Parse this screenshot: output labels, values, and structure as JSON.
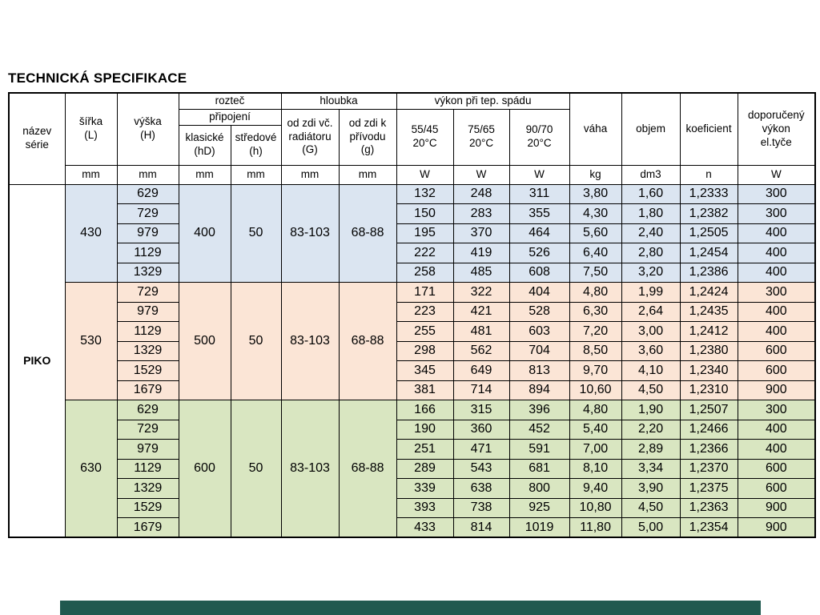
{
  "title": "TECHNICKÁ SPECIFIKACE",
  "footer_bar": {
    "color": "#20594f"
  },
  "table": {
    "serie": "PIKO",
    "header": {
      "nazev_serie": "název\nsérie",
      "sirka": "šířka\n(L)",
      "vyska": "výška\n(H)",
      "roztec": "rozteč",
      "pripojeni": "připojení",
      "klasicke": "klasické\n(hD)",
      "stredove": "středové\n(h)",
      "hloubka": "hloubka",
      "od_zdi_vc": "od zdi vč.\nradiátoru\n(G)",
      "od_zdi_k": "od zdi k\npřívodu\n(g)",
      "vykon": "výkon při tep. spádu",
      "t5545": "55/45\n20°C",
      "t7565": "75/65\n20°C",
      "t9070": "90/70\n20°C",
      "vaha": "váha",
      "objem": "objem",
      "koeficient": "koeficient",
      "doporuceny": "doporučený\nvýkon\nel.tyče",
      "units": [
        "mm",
        "mm",
        "mm",
        "mm",
        "mm",
        "mm",
        "W",
        "W",
        "W",
        "kg",
        "dm3",
        "n",
        "W"
      ]
    },
    "groups": [
      {
        "color": "#dbe5f1",
        "sirka": "430",
        "klasicke": "400",
        "stredove": "50",
        "od_zdi_vc": "83-103",
        "od_zdi_k": "68-88",
        "rows": [
          [
            "629",
            "132",
            "248",
            "311",
            "3,80",
            "1,60",
            "1,2333",
            "300"
          ],
          [
            "729",
            "150",
            "283",
            "355",
            "4,30",
            "1,80",
            "1,2382",
            "300"
          ],
          [
            "979",
            "195",
            "370",
            "464",
            "5,60",
            "2,40",
            "1,2505",
            "400"
          ],
          [
            "1129",
            "222",
            "419",
            "526",
            "6,40",
            "2,80",
            "1,2454",
            "400"
          ],
          [
            "1329",
            "258",
            "485",
            "608",
            "7,50",
            "3,20",
            "1,2386",
            "400"
          ]
        ]
      },
      {
        "color": "#fbe5d6",
        "sirka": "530",
        "klasicke": "500",
        "stredove": "50",
        "od_zdi_vc": "83-103",
        "od_zdi_k": "68-88",
        "rows": [
          [
            "729",
            "171",
            "322",
            "404",
            "4,80",
            "1,99",
            "1,2424",
            "300"
          ],
          [
            "979",
            "223",
            "421",
            "528",
            "6,30",
            "2,64",
            "1,2435",
            "400"
          ],
          [
            "1129",
            "255",
            "481",
            "603",
            "7,20",
            "3,00",
            "1,2412",
            "400"
          ],
          [
            "1329",
            "298",
            "562",
            "704",
            "8,50",
            "3,60",
            "1,2380",
            "600"
          ],
          [
            "1529",
            "345",
            "649",
            "813",
            "9,70",
            "4,10",
            "1,2340",
            "600"
          ],
          [
            "1679",
            "381",
            "714",
            "894",
            "10,60",
            "4,50",
            "1,2310",
            "900"
          ]
        ]
      },
      {
        "color": "#d9e6c1",
        "sirka": "630",
        "klasicke": "600",
        "stredove": "50",
        "od_zdi_vc": "83-103",
        "od_zdi_k": "68-88",
        "rows": [
          [
            "629",
            "166",
            "315",
            "396",
            "4,80",
            "1,90",
            "1,2507",
            "300"
          ],
          [
            "729",
            "190",
            "360",
            "452",
            "5,40",
            "2,20",
            "1,2466",
            "400"
          ],
          [
            "979",
            "251",
            "471",
            "591",
            "7,00",
            "2,89",
            "1,2366",
            "400"
          ],
          [
            "1129",
            "289",
            "543",
            "681",
            "8,10",
            "3,34",
            "1,2370",
            "600"
          ],
          [
            "1329",
            "339",
            "638",
            "800",
            "9,40",
            "3,90",
            "1,2375",
            "600"
          ],
          [
            "1529",
            "393",
            "738",
            "925",
            "10,80",
            "4,50",
            "1,2363",
            "900"
          ],
          [
            "1679",
            "433",
            "814",
            "1019",
            "11,80",
            "5,00",
            "1,2354",
            "900"
          ]
        ]
      }
    ]
  }
}
